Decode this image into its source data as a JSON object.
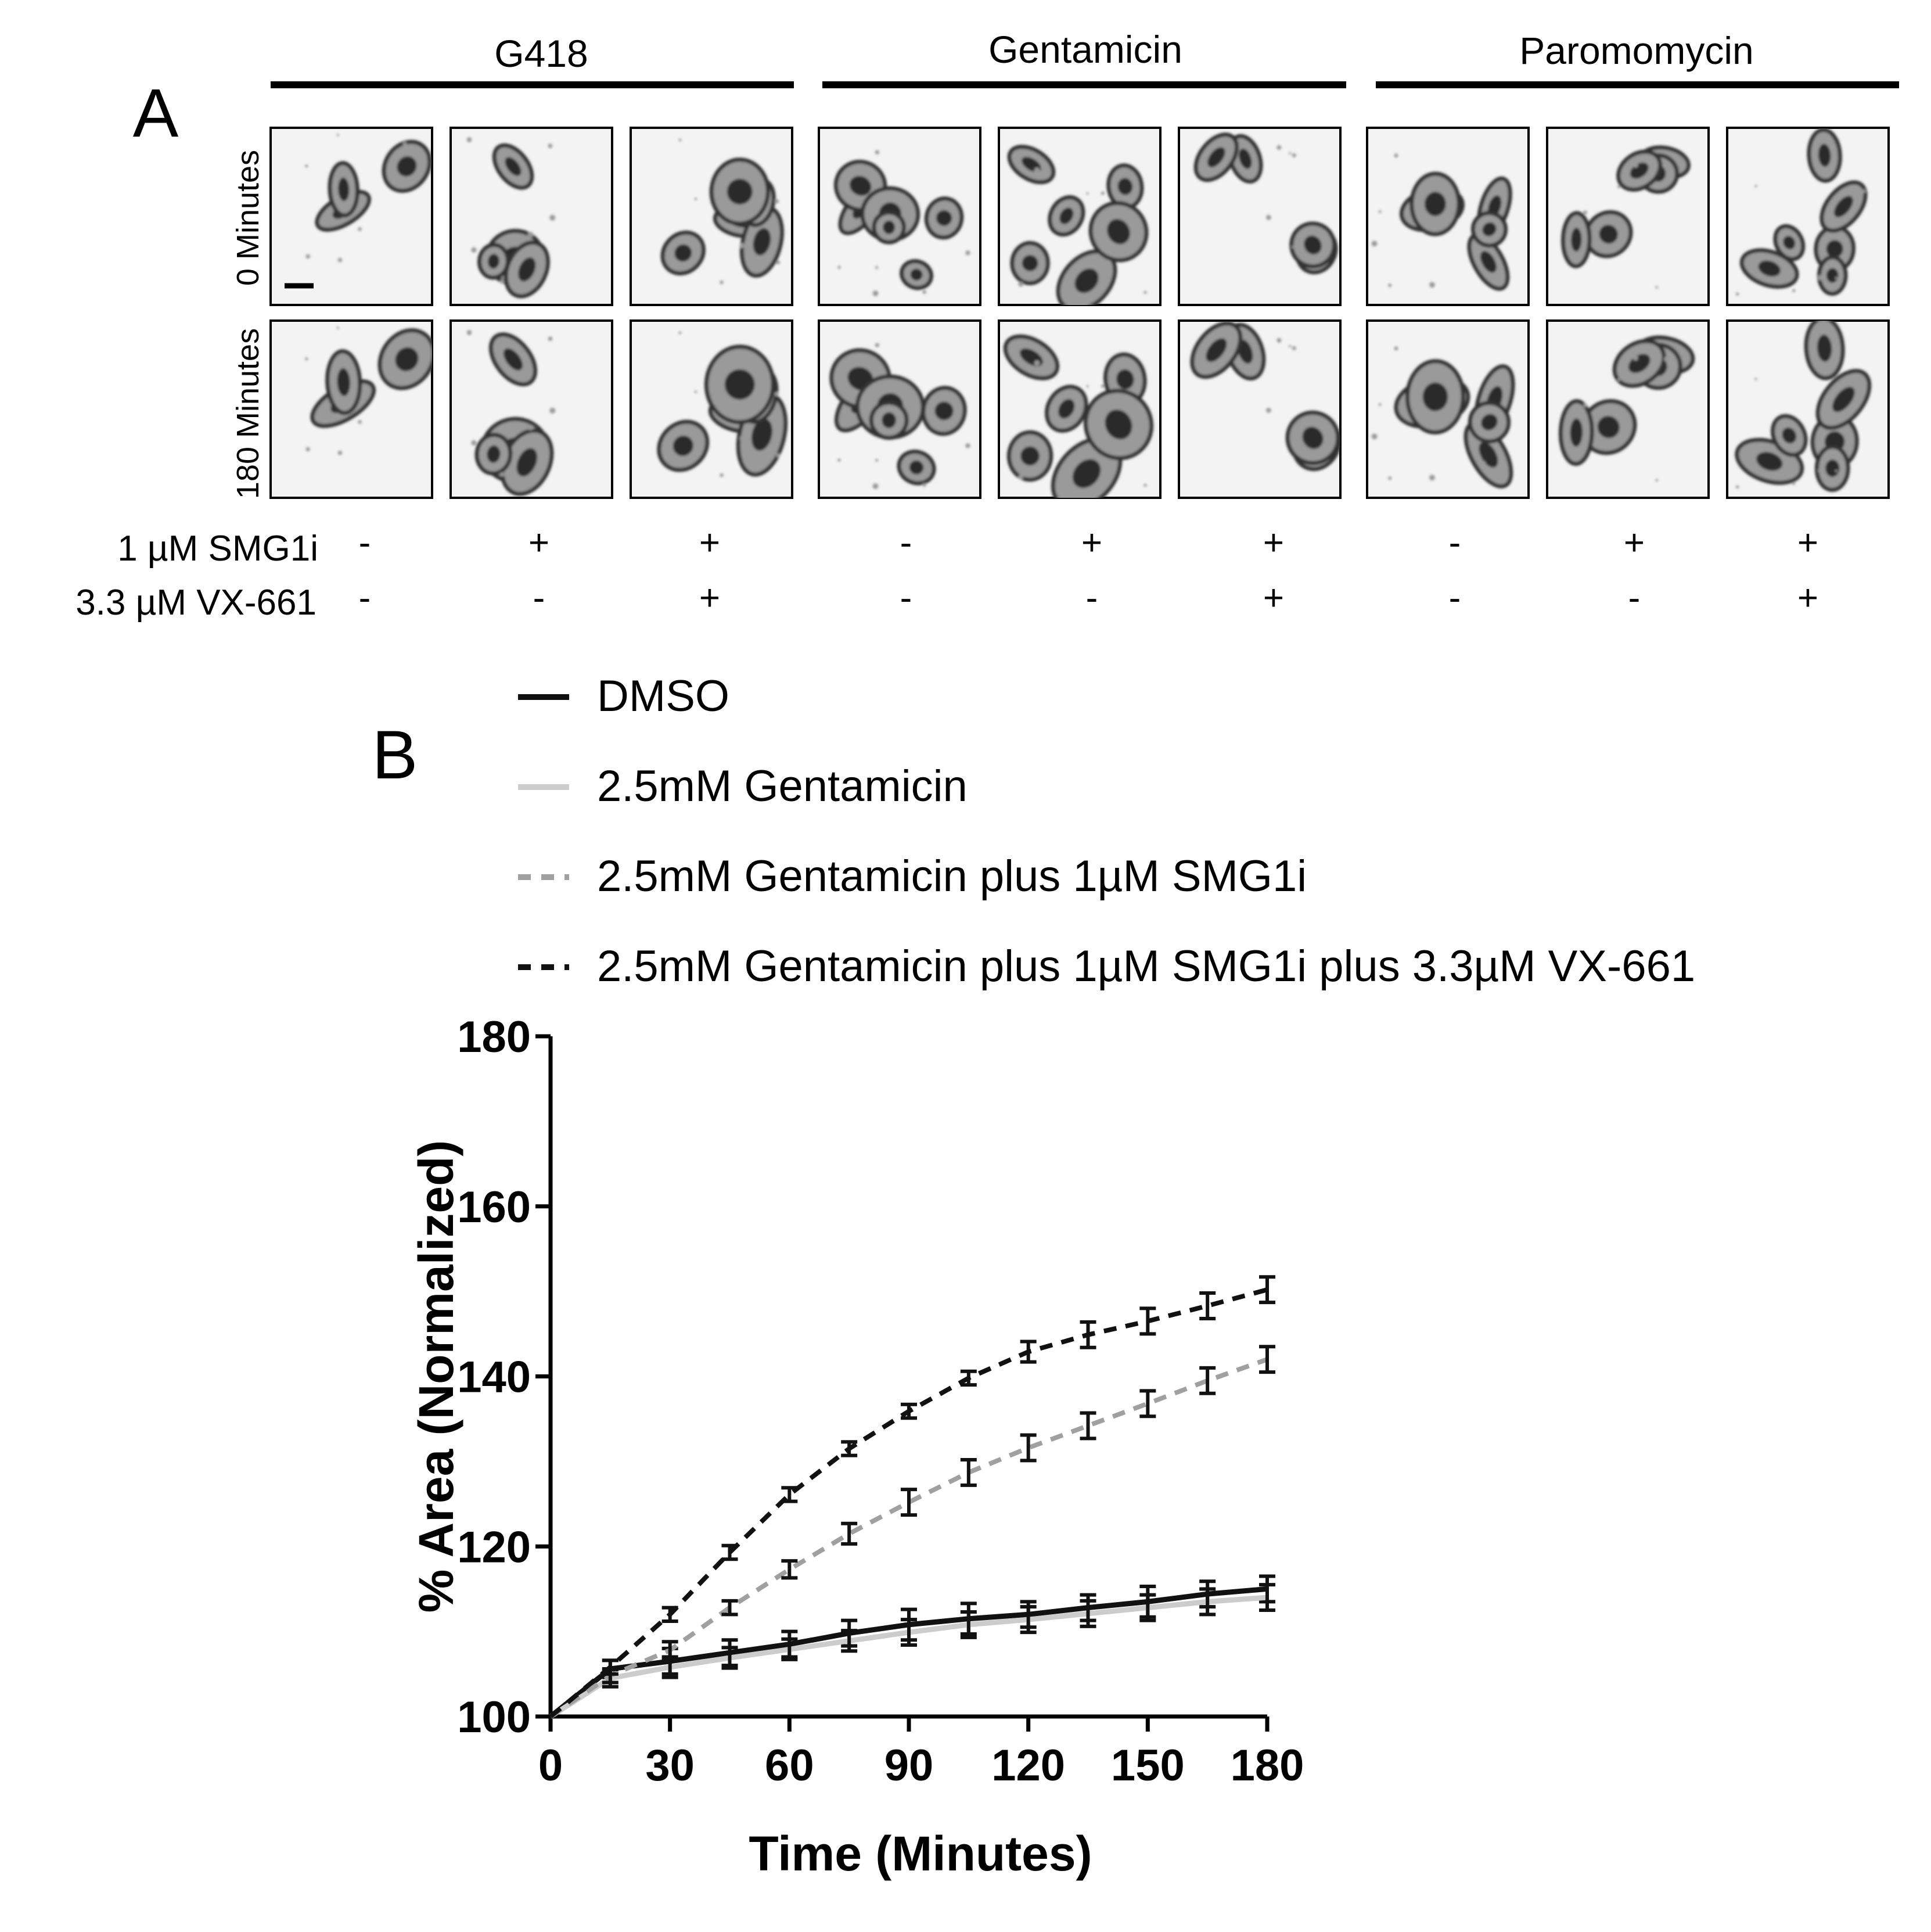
{
  "figure": {
    "panel_a": {
      "label": "A",
      "groups": [
        "G418",
        "Gentamicin",
        "Paromomycin"
      ],
      "row_labels": [
        "0 Minutes",
        "180 Minutes"
      ],
      "conditions": [
        {
          "name": "1 µM SMG1i",
          "values": [
            "-",
            "+",
            "+",
            "-",
            "+",
            "+",
            "-",
            "+",
            "+"
          ]
        },
        {
          "name": "3.3 µM VX-661",
          "values": [
            "-",
            "-",
            "+",
            "-",
            "-",
            "+",
            "-",
            "-",
            "+"
          ]
        }
      ]
    },
    "panel_b": {
      "label": "B"
    }
  },
  "chart_data": {
    "type": "line",
    "title": "",
    "xlabel": "Time (Minutes)",
    "ylabel": "% Area (Normalized)",
    "xlim": [
      0,
      180
    ],
    "ylim": [
      100,
      180
    ],
    "xticks": [
      0,
      30,
      60,
      90,
      120,
      150,
      180
    ],
    "yticks": [
      100,
      120,
      140,
      160,
      180
    ],
    "grid": false,
    "legend_position": "top",
    "x": [
      0,
      15,
      30,
      45,
      60,
      75,
      90,
      105,
      120,
      135,
      150,
      165,
      180
    ],
    "series": [
      {
        "name": "DMSO",
        "color": "#111111",
        "style": "solid",
        "values": [
          100,
          105.6,
          106.5,
          107.5,
          108.5,
          109.8,
          110.8,
          111.5,
          112,
          112.8,
          113.5,
          114.4,
          115
        ],
        "errors": [
          0,
          1.0,
          1.5,
          1.5,
          1.5,
          1.5,
          1.8,
          1.8,
          1.5,
          1.5,
          1.8,
          1.5,
          1.5
        ]
      },
      {
        "name": "2.5mM Gentamicin",
        "color": "#cccccc",
        "style": "solid",
        "values": [
          100,
          104.5,
          105.8,
          106.9,
          107.9,
          108.9,
          109.9,
          110.8,
          111.4,
          112.1,
          112.8,
          113.5,
          114
        ],
        "errors": [
          0,
          1.0,
          1.2,
          1.2,
          1.2,
          1.2,
          1.5,
          1.5,
          1.5,
          1.5,
          1.5,
          1.5,
          1.5
        ]
      },
      {
        "name": "2.5mM Gentamicin plus 1µM SMG1i",
        "color": "#a0a0a0",
        "style": "dashed",
        "values": [
          100,
          104.8,
          107.8,
          112.8,
          117.3,
          121.5,
          125.2,
          128.7,
          131.6,
          134.2,
          136.8,
          139.5,
          142
        ],
        "errors": [
          0,
          0.8,
          1.0,
          0.8,
          1.0,
          1.2,
          1.5,
          1.5,
          1.5,
          1.5,
          1.5,
          1.5,
          1.5
        ]
      },
      {
        "name": "2.5mM Gentamicin plus 1µM SMG1i plus 3.3µM VX-661",
        "color": "#111111",
        "style": "dashed",
        "values": [
          100,
          105.8,
          112,
          119.3,
          126.1,
          131.5,
          135.9,
          139.8,
          142.9,
          144.9,
          146.5,
          148.3,
          150.2
        ],
        "errors": [
          0,
          0.8,
          0.8,
          0.8,
          0.8,
          0.8,
          0.8,
          0.8,
          1.2,
          1.5,
          1.5,
          1.5,
          1.5
        ]
      }
    ]
  }
}
